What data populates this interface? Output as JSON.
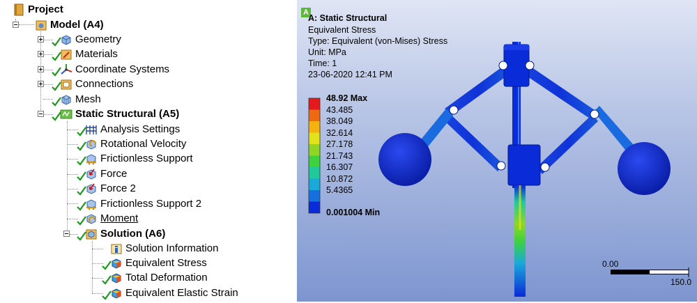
{
  "tree": {
    "root": "Project",
    "model": "Model (A4)",
    "model_children": [
      "Geometry",
      "Materials",
      "Coordinate Systems",
      "Connections",
      "Mesh"
    ],
    "analysis": "Static Structural (A5)",
    "analysis_children": [
      "Analysis Settings",
      "Rotational Velocity",
      "Frictionless Support",
      "Force",
      "Force 2",
      "Frictionless Support 2",
      "Moment"
    ],
    "solution": "Solution (A6)",
    "solution_children": [
      "Solution Information",
      "Equivalent Stress",
      "Total Deformation",
      "Equivalent Elastic Strain"
    ]
  },
  "viewport": {
    "badge": "A",
    "title": "A: Static Structural",
    "info_lines": [
      "Equivalent Stress",
      "Type: Equivalent (von-Mises) Stress",
      "Unit: MPa",
      "Time: 1",
      "23-06-2020 12:41 PM"
    ],
    "legend": {
      "max": "48.92 Max",
      "values": [
        "43.485",
        "38.049",
        "32.614",
        "27.178",
        "21.743",
        "16.307",
        "10.872",
        "5.4365"
      ],
      "min": "0.001004 Min",
      "colors": [
        "#e5191b",
        "#ee6a12",
        "#f5b110",
        "#e2e21a",
        "#8fd624",
        "#3ed23e",
        "#20c99c",
        "#1aa9d9",
        "#1570df",
        "#0a2bd8"
      ]
    },
    "scale": {
      "start": "0.00",
      "end": "150.0"
    }
  }
}
